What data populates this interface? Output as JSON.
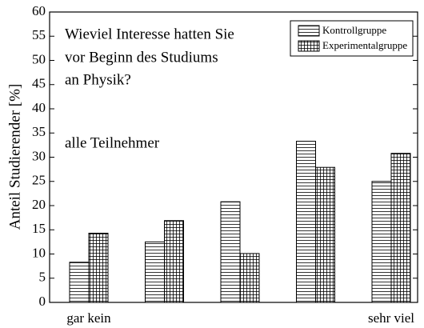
{
  "chart_data": {
    "type": "bar",
    "title_lines": [
      "Wieviel Interesse hatten Sie",
      "vor Beginn des Studiums",
      "an Physik?"
    ],
    "annotation": "alle Teilnehmer",
    "ylabel": "Anteil Studierender [%]",
    "categories": [
      "gar kein",
      null,
      null,
      null,
      "sehr viel"
    ],
    "series": [
      {
        "name": "Kontrollgruppe",
        "color": "#000000",
        "hatch": "horizontal",
        "values": [
          8.3,
          12.5,
          20.8,
          33.3,
          25.0
        ]
      },
      {
        "name": "Experimentalgruppe",
        "color": "#000000",
        "hatch": "grid",
        "values": [
          14.3,
          16.9,
          10.1,
          27.9,
          30.8
        ]
      }
    ],
    "ylim": [
      0,
      60
    ],
    "yticks": [
      0,
      5,
      10,
      15,
      20,
      25,
      30,
      35,
      40,
      45,
      50,
      55,
      60
    ],
    "grid": false,
    "legend": "upper right"
  }
}
